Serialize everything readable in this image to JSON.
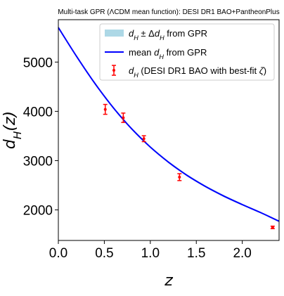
{
  "chart_data": {
    "type": "line",
    "title": "Multi-task GPR (ΛCDM mean function): DESI DR1 BAO+PantheonPlus",
    "xlabel": "z",
    "ylabel": "d_H(z)",
    "xlim": [
      0.0,
      2.4
    ],
    "ylim": [
      1380,
      5860
    ],
    "xticks": [
      "0.0",
      "0.5",
      "1.0",
      "1.5",
      "2.0"
    ],
    "xtick_values": [
      0.0,
      0.5,
      1.0,
      1.5,
      2.0
    ],
    "yticks": [
      "2000",
      "3000",
      "4000",
      "5000"
    ],
    "ytick_values": [
      2000,
      3000,
      4000,
      5000
    ],
    "grid": false,
    "legend_position": "top-right",
    "series": [
      {
        "name": "d_H ± Δd_H from GPR",
        "kind": "band",
        "color": "#add8e6",
        "x": [
          0.0,
          0.2,
          0.4,
          0.6,
          0.8,
          1.0,
          1.2,
          1.4,
          1.6,
          1.8,
          2.0,
          2.2,
          2.4
        ],
        "lower": [
          5690,
          5095,
          4545,
          4050,
          3620,
          3255,
          2945,
          2680,
          2455,
          2260,
          2090,
          1930,
          1755
        ],
        "upper": [
          5710,
          5125,
          4575,
          4085,
          3660,
          3295,
          2985,
          2720,
          2495,
          2300,
          2125,
          1960,
          1785
        ]
      },
      {
        "name": "mean d_H from GPR",
        "kind": "line",
        "color": "#0000ff",
        "x": [
          0.0,
          0.2,
          0.4,
          0.6,
          0.8,
          1.0,
          1.2,
          1.4,
          1.6,
          1.8,
          2.0,
          2.2,
          2.4
        ],
        "y": [
          5700,
          5110,
          4560,
          4068,
          3640,
          3275,
          2965,
          2700,
          2475,
          2280,
          2108,
          1945,
          1770
        ]
      },
      {
        "name": "d_H (DESI DR1 BAO with best-fit ζ)",
        "kind": "errorbar",
        "color": "#ff0000",
        "x": [
          0.51,
          0.706,
          0.93,
          1.317,
          2.33
        ],
        "y": [
          4040,
          3870,
          3445,
          2665,
          1645
        ],
        "yerr": [
          100,
          95,
          60,
          70,
          25
        ]
      }
    ],
    "legend": {
      "band_label": "d_H ± Δd_H from GPR",
      "line_label": "mean d_H from GPR",
      "points_label": "d_H (DESI DR1 BAO with best-fit ζ)"
    }
  }
}
